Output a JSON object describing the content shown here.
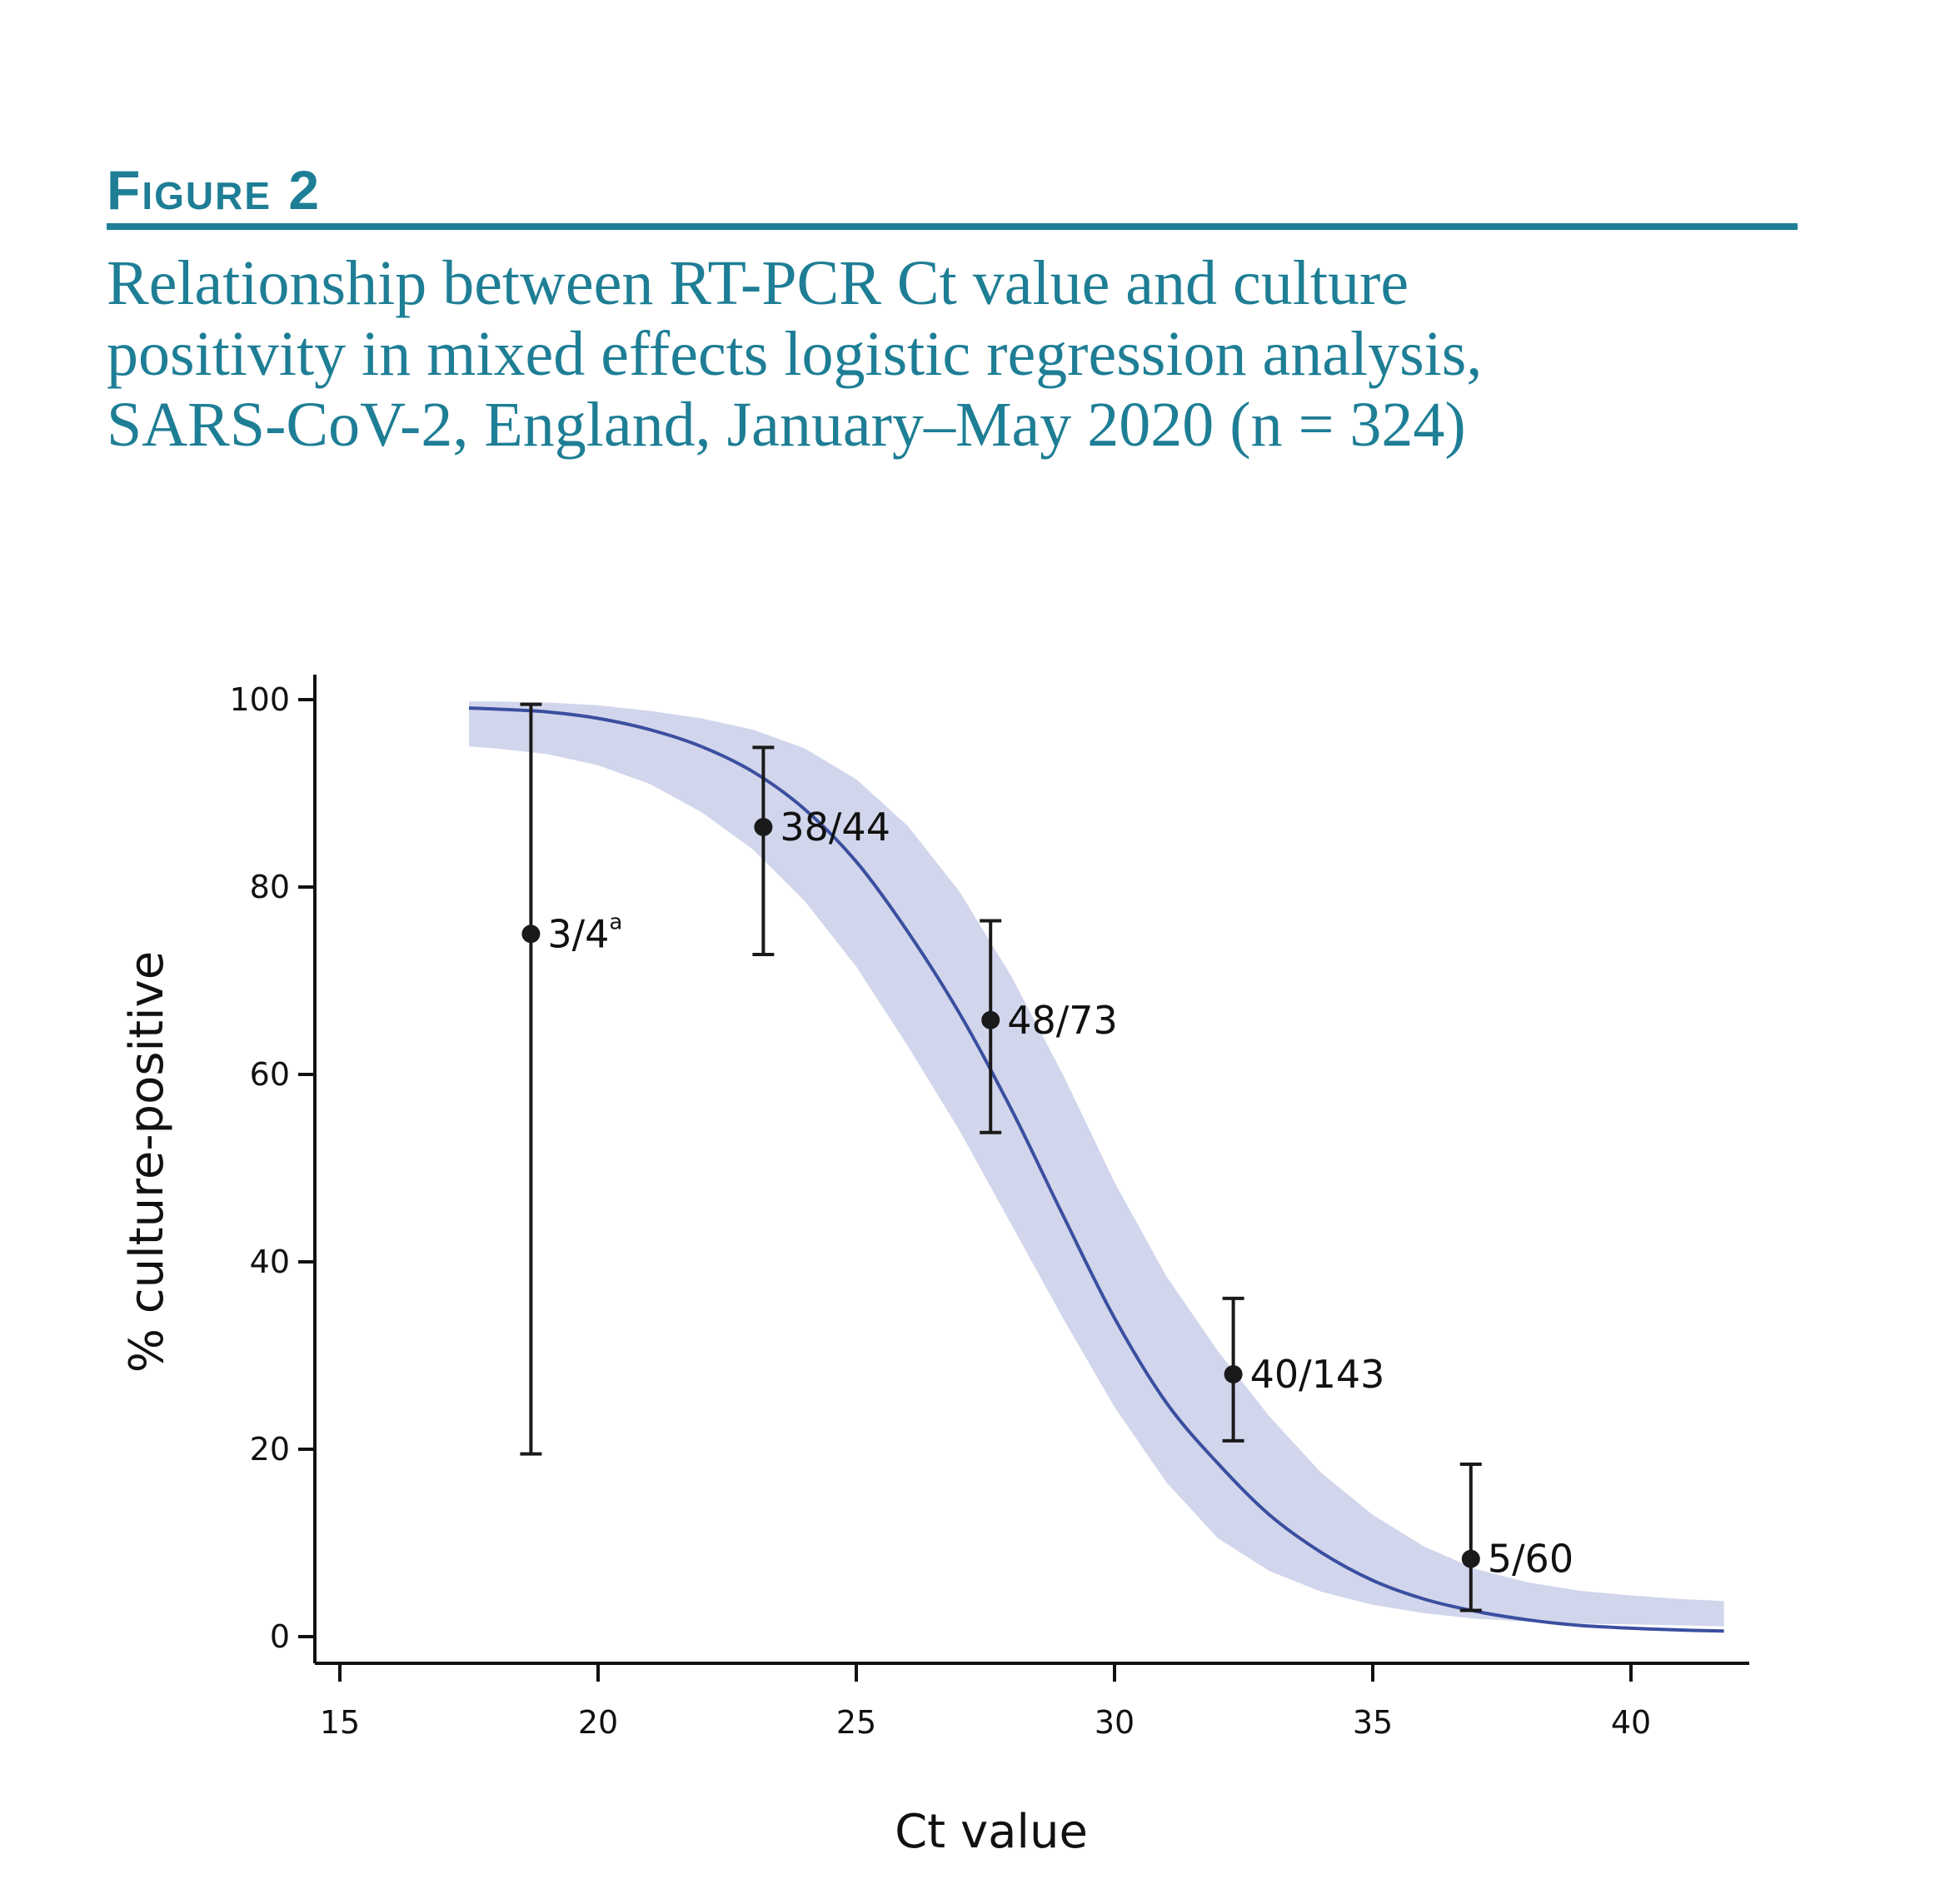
{
  "figure": {
    "label": "Figure 2",
    "title_lines": [
      "Relationship between RT-PCR Ct value and culture",
      "positivity in mixed effects logistic regression analysis,",
      "SARS-CoV-2, England, January–May 2020 (n = 324)"
    ]
  },
  "chart_data": {
    "type": "line",
    "xlabel": "Ct value",
    "ylabel": "% culture-positive",
    "xlim": [
      15,
      42
    ],
    "ylim": [
      0,
      100
    ],
    "x_ticks": [
      15,
      20,
      25,
      30,
      35,
      40
    ],
    "y_ticks": [
      0,
      20,
      40,
      60,
      80,
      100
    ],
    "grid": false,
    "colors": {
      "curve": "#3b4fa0",
      "band": "#d2d6ec",
      "points": "#1a1a1a"
    },
    "fitted_curve": {
      "x": [
        17.5,
        18,
        19,
        20,
        21,
        22,
        23,
        24,
        25,
        26,
        27,
        28,
        29,
        30,
        31,
        32,
        33,
        34,
        35,
        36,
        37,
        38,
        39,
        40,
        41,
        41.8
      ],
      "y": [
        99.1,
        99.0,
        98.7,
        98.0,
        96.8,
        95.0,
        92.3,
        88.3,
        82.7,
        75.2,
        66.5,
        56.3,
        45.0,
        34.0,
        25.0,
        18.5,
        13.0,
        9.0,
        6.0,
        4.0,
        2.7,
        1.8,
        1.2,
        0.9,
        0.7,
        0.6
      ],
      "lower": [
        95.0,
        94.8,
        94.2,
        93.0,
        91.0,
        88.0,
        84.0,
        78.5,
        71.5,
        63.0,
        54.0,
        44.0,
        34.0,
        24.5,
        16.5,
        10.5,
        7.0,
        4.8,
        3.4,
        2.5,
        1.9,
        1.6,
        1.4,
        1.3,
        1.2,
        1.1
      ],
      "upper": [
        99.8,
        99.8,
        99.7,
        99.4,
        98.8,
        98.0,
        96.8,
        94.8,
        91.5,
        86.5,
        79.5,
        70.5,
        60.0,
        48.5,
        38.5,
        30.5,
        23.5,
        17.5,
        13.0,
        9.6,
        7.2,
        5.8,
        4.9,
        4.4,
        4.0,
        3.8
      ]
    },
    "observed_points": [
      {
        "x": 18.7,
        "y": 75.0,
        "lower": 19.5,
        "upper": 99.5,
        "label": "3/4",
        "sup": "a"
      },
      {
        "x": 23.2,
        "y": 86.4,
        "lower": 72.8,
        "upper": 94.9,
        "label": "38/44",
        "sup": ""
      },
      {
        "x": 27.6,
        "y": 65.8,
        "lower": 53.8,
        "upper": 76.4,
        "label": "48/73",
        "sup": ""
      },
      {
        "x": 32.3,
        "y": 28.0,
        "lower": 20.9,
        "upper": 36.1,
        "label": "40/143",
        "sup": ""
      },
      {
        "x": 36.9,
        "y": 8.3,
        "lower": 2.8,
        "upper": 18.4,
        "label": "5/60",
        "sup": ""
      }
    ]
  }
}
